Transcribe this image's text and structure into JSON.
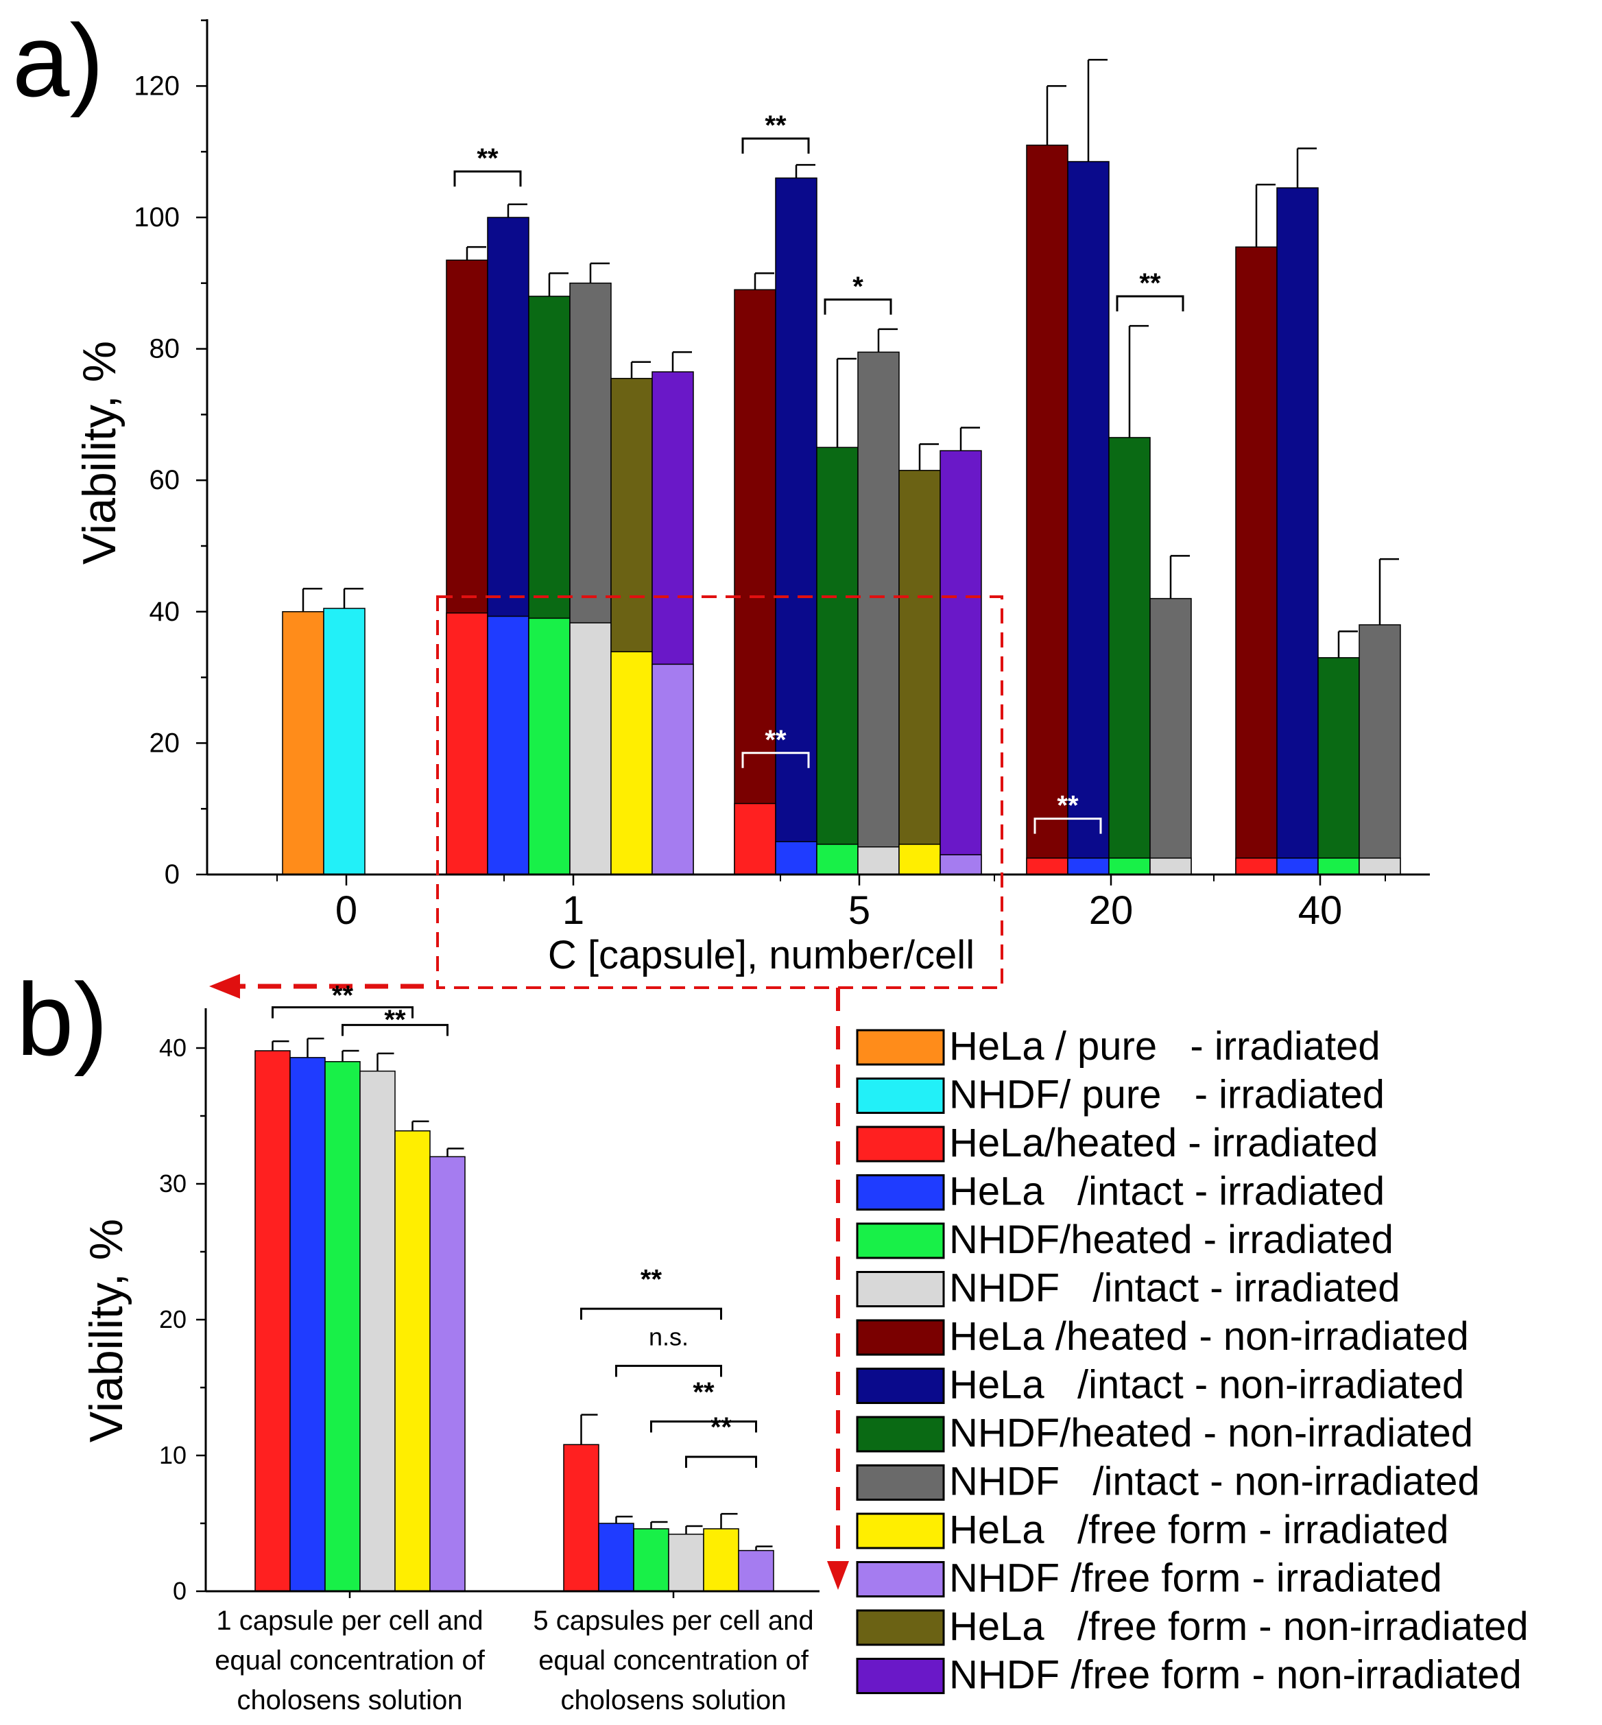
{
  "colors": {
    "HeLa_pure_irr": "#ff8c1a",
    "NHDF_pure_irr": "#22f0f8",
    "HeLa_heated_irr": "#ff2020",
    "HeLa_intact_irr": "#1f3cff",
    "NHDF_heated_irr": "#18f048",
    "NHDF_intact_irr": "#d8d8d8",
    "HeLa_heated_non": "#7a0000",
    "HeLa_intact_non": "#0a0a8c",
    "NHDF_heated_non": "#0a6a14",
    "NHDF_intact_non": "#6a6a6a",
    "HeLa_free_irr": "#ffee00",
    "NHDF_free_irr": "#a57cf0",
    "HeLa_free_non": "#6b6214",
    "NHDF_free_non": "#6a18c8",
    "dashed": "#e01010"
  },
  "chart_data": [
    {
      "type": "bar",
      "panel_label": "a)",
      "xlabel": "C [capsule], number/cell",
      "ylabel": "Viability, %",
      "ylim": [
        0,
        130
      ],
      "yticks": [
        "0",
        "20",
        "40",
        "60",
        "80",
        "100",
        "120"
      ],
      "categories": [
        "0",
        "1",
        "5",
        "20",
        "40"
      ],
      "groups": [
        {
          "category": "0",
          "bars": [
            {
              "series": "HeLa_pure_irr",
              "value": 40,
              "err": 3.5
            },
            {
              "series": "NHDF_pure_irr",
              "value": 40.5,
              "err": 3
            }
          ]
        },
        {
          "category": "1",
          "bars": [
            {
              "series": "HeLa_heated_non",
              "value": 93.5,
              "err": 2,
              "irr_series": "HeLa_heated_irr",
              "irr_value": 39.8
            },
            {
              "series": "HeLa_intact_non",
              "value": 100,
              "err": 2,
              "irr_series": "HeLa_intact_irr",
              "irr_value": 39.3
            },
            {
              "series": "NHDF_heated_non",
              "value": 88,
              "err": 3.5,
              "irr_series": "NHDF_heated_irr",
              "irr_value": 39
            },
            {
              "series": "NHDF_intact_non",
              "value": 90,
              "err": 3,
              "irr_series": "NHDF_intact_irr",
              "irr_value": 38.3
            },
            {
              "series": "HeLa_free_non",
              "value": 75.5,
              "err": 2.5,
              "irr_series": "HeLa_free_irr",
              "irr_value": 33.9
            },
            {
              "series": "NHDF_free_non",
              "value": 76.5,
              "err": 3,
              "irr_series": "NHDF_free_irr",
              "irr_value": 32
            }
          ]
        },
        {
          "category": "5",
          "bars": [
            {
              "series": "HeLa_heated_non",
              "value": 89,
              "err": 2.5,
              "irr_series": "HeLa_heated_irr",
              "irr_value": 10.8
            },
            {
              "series": "HeLa_intact_non",
              "value": 106,
              "err": 2,
              "irr_series": "HeLa_intact_irr",
              "irr_value": 5
            },
            {
              "series": "NHDF_heated_non",
              "value": 65,
              "err": 13.5,
              "irr_series": "NHDF_heated_irr",
              "irr_value": 4.6
            },
            {
              "series": "NHDF_intact_non",
              "value": 79.5,
              "err": 3.5,
              "irr_series": "NHDF_intact_irr",
              "irr_value": 4.2
            },
            {
              "series": "HeLa_free_non",
              "value": 61.5,
              "err": 4,
              "irr_series": "HeLa_free_irr",
              "irr_value": 4.6
            },
            {
              "series": "NHDF_free_non",
              "value": 64.5,
              "err": 3.5,
              "irr_series": "NHDF_free_irr",
              "irr_value": 3
            }
          ]
        },
        {
          "category": "20",
          "bars": [
            {
              "series": "HeLa_heated_non",
              "value": 111,
              "err": 9,
              "irr_series": "HeLa_heated_irr",
              "irr_value": 2.5
            },
            {
              "series": "HeLa_intact_non",
              "value": 108.5,
              "err": 15.5,
              "irr_series": "HeLa_intact_irr",
              "irr_value": 2.5
            },
            {
              "series": "NHDF_heated_non",
              "value": 66.5,
              "err": 17,
              "irr_series": "NHDF_heated_irr",
              "irr_value": 2.5
            },
            {
              "series": "NHDF_intact_non",
              "value": 42,
              "err": 6.5,
              "irr_series": "NHDF_intact_irr",
              "irr_value": 2.5
            }
          ]
        },
        {
          "category": "40",
          "bars": [
            {
              "series": "HeLa_heated_non",
              "value": 95.5,
              "err": 9.5,
              "irr_series": "HeLa_heated_irr",
              "irr_value": 2.5
            },
            {
              "series": "HeLa_intact_non",
              "value": 104.5,
              "err": 6,
              "irr_series": "HeLa_intact_irr",
              "irr_value": 2.5
            },
            {
              "series": "NHDF_heated_non",
              "value": 33,
              "err": 4,
              "irr_series": "NHDF_heated_irr",
              "irr_value": 2.5
            },
            {
              "series": "NHDF_intact_non",
              "value": 38,
              "err": 10,
              "irr_series": "NHDF_intact_irr",
              "irr_value": 2.5
            }
          ]
        }
      ],
      "annotations": [
        {
          "text": "**",
          "group": 1,
          "from": 0,
          "to": 1,
          "y": 107,
          "color": "black"
        },
        {
          "text": "**",
          "group": 2,
          "from": 0,
          "to": 1,
          "y": 112,
          "color": "black"
        },
        {
          "text": "*",
          "group": 2,
          "from": 2,
          "to": 3,
          "y": 87.5,
          "color": "black"
        },
        {
          "text": "**",
          "group": 3,
          "from": 2,
          "to": 3,
          "y": 88,
          "color": "black"
        },
        {
          "text": "**",
          "group": 2,
          "from": 0,
          "to": 1,
          "y": 18.5,
          "color": "white"
        },
        {
          "text": "**",
          "group": 3,
          "from": 0,
          "to": 1,
          "y": 8.5,
          "color": "white"
        }
      ]
    },
    {
      "type": "bar",
      "panel_label": "b)",
      "xlabel": "",
      "ylabel": "Viability, %",
      "ylim": [
        0,
        43
      ],
      "yticks": [
        "0",
        "10",
        "20",
        "30",
        "40"
      ],
      "categories": [
        [
          "1 capsule per cell and",
          "equal concentration of",
          "cholosens solution"
        ],
        [
          "5 capsules per cell and",
          "equal concentration of",
          "cholosens solution"
        ]
      ],
      "series": [
        {
          "name": "HeLa_heated_irr",
          "values": [
            39.8,
            10.8
          ],
          "errors": [
            0.7,
            2.2
          ]
        },
        {
          "name": "HeLa_intact_irr",
          "values": [
            39.3,
            5.0
          ],
          "errors": [
            1.4,
            0.5
          ]
        },
        {
          "name": "NHDF_heated_irr",
          "values": [
            39.0,
            4.6
          ],
          "errors": [
            0.8,
            0.5
          ]
        },
        {
          "name": "NHDF_intact_irr",
          "values": [
            38.3,
            4.2
          ],
          "errors": [
            1.3,
            0.6
          ]
        },
        {
          "name": "HeLa_free_irr",
          "values": [
            33.9,
            4.6
          ],
          "errors": [
            0.7,
            1.1
          ]
        },
        {
          "name": "NHDF_free_irr",
          "values": [
            32.0,
            3.0
          ],
          "errors": [
            0.6,
            0.3
          ]
        }
      ],
      "annotations": [
        {
          "text": "**",
          "group": 0,
          "from": 0,
          "to": 4,
          "y": 43,
          "yText": 43
        },
        {
          "text": "**",
          "group": 0,
          "from": 2,
          "to": 5,
          "y": 41.7,
          "yText": 41.2
        },
        {
          "text": "**",
          "group": 1,
          "from": 0,
          "to": 4,
          "y": 20.8,
          "yText": 22.1
        },
        {
          "text": "n.s.",
          "group": 1,
          "from": 1,
          "to": 4,
          "y": 16.6,
          "yText": 17.9
        },
        {
          "text": "**",
          "group": 1,
          "from": 2,
          "to": 5,
          "y": 12.5,
          "yText": 13.8
        },
        {
          "text": "**",
          "group": 1,
          "from": 3,
          "to": 5,
          "y": 9.9,
          "yText": 11.2
        }
      ]
    }
  ],
  "legend": {
    "entries": [
      {
        "series": "HeLa_pure_irr",
        "label": "HeLa / pure   - irradiated"
      },
      {
        "series": "NHDF_pure_irr",
        "label": "NHDF/ pure   - irradiated"
      },
      {
        "series": "HeLa_heated_irr",
        "label": "HeLa/heated - irradiated"
      },
      {
        "series": "HeLa_intact_irr",
        "label": "HeLa   /intact - irradiated"
      },
      {
        "series": "NHDF_heated_irr",
        "label": "NHDF/heated - irradiated"
      },
      {
        "series": "NHDF_intact_irr",
        "label": "NHDF   /intact - irradiated"
      },
      {
        "series": "HeLa_heated_non",
        "label": "HeLa /heated - non-irradiated"
      },
      {
        "series": "HeLa_intact_non",
        "label": "HeLa   /intact - non-irradiated"
      },
      {
        "series": "NHDF_heated_non",
        "label": "NHDF/heated - non-irradiated"
      },
      {
        "series": "NHDF_intact_non",
        "label": "NHDF   /intact - non-irradiated"
      },
      {
        "series": "HeLa_free_irr",
        "label": "HeLa   /free form - irradiated"
      },
      {
        "series": "NHDF_free_irr",
        "label": "NHDF /free form - irradiated"
      },
      {
        "series": "HeLa_free_non",
        "label": "HeLa   /free form - non-irradiated"
      },
      {
        "series": "NHDF_free_non",
        "label": "NHDF /free form - non-irradiated"
      }
    ]
  }
}
